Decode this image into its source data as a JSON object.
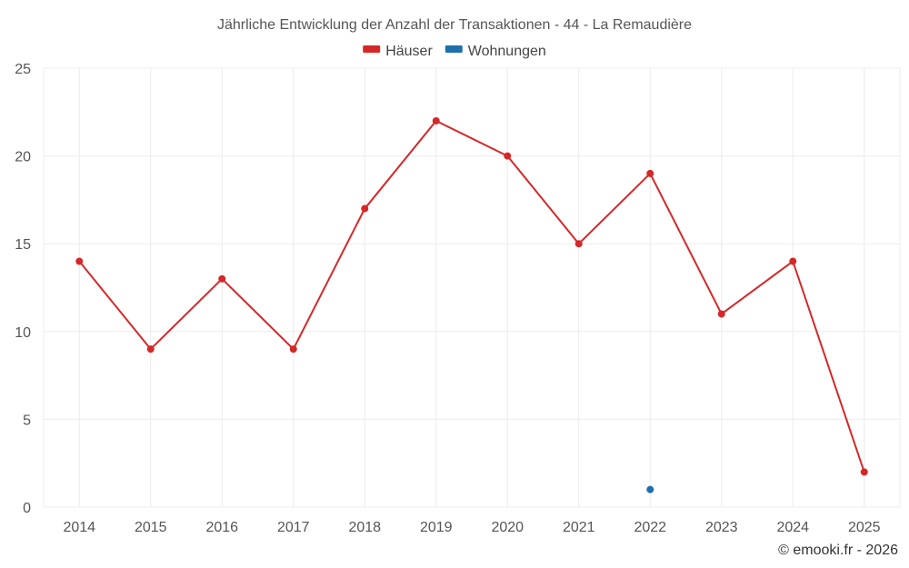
{
  "colors": {
    "houses": "#d62728",
    "apartments": "#1f6fad",
    "grid": "#ececec"
  },
  "chart_data": {
    "type": "line",
    "title": "Jährliche Entwicklung der Anzahl der Transaktionen - 44 - La Remaudière",
    "xlabel": "",
    "ylabel": "",
    "categories": [
      "2014",
      "2015",
      "2016",
      "2017",
      "2018",
      "2019",
      "2020",
      "2021",
      "2022",
      "2023",
      "2024",
      "2025"
    ],
    "ylim": [
      0,
      25
    ],
    "yticks": [
      "0",
      "5",
      "10",
      "15",
      "20",
      "25"
    ],
    "grid": true,
    "legend_position": "top-center",
    "series": [
      {
        "name": "Häuser",
        "color": "#d62728",
        "values": [
          14,
          9,
          13,
          9,
          17,
          22,
          20,
          15,
          19,
          11,
          14,
          2
        ]
      },
      {
        "name": "Wohnungen",
        "color": "#1f6fad",
        "values": [
          null,
          null,
          null,
          null,
          null,
          null,
          null,
          null,
          1,
          null,
          null,
          null
        ]
      }
    ]
  },
  "credit": "© emooki.fr - 2026"
}
